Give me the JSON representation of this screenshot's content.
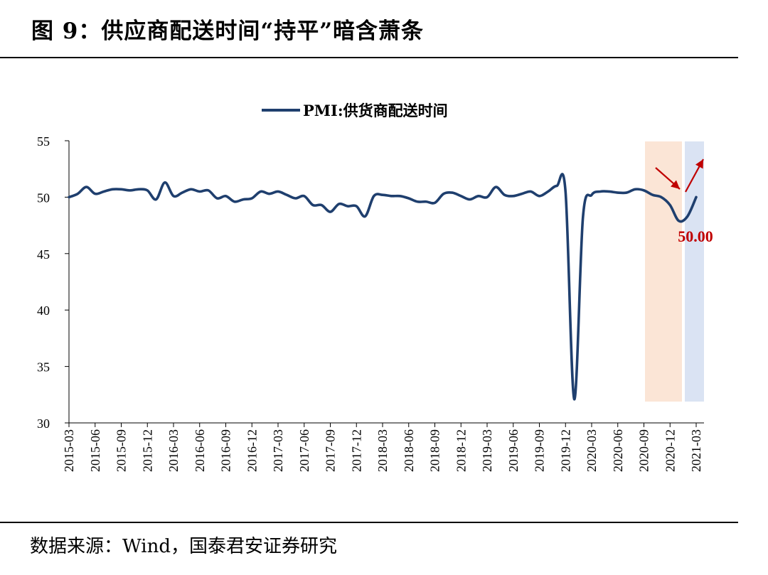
{
  "figure": {
    "title": "图 9：供应商配送时间“持平”暗含萧条",
    "source": "数据来源：Wind，国泰君安证券研究"
  },
  "chart_data": {
    "type": "line",
    "title": "",
    "xlabel": "",
    "ylabel": "",
    "ylim": [
      30,
      55
    ],
    "yticks": [
      30,
      35,
      40,
      45,
      50,
      55
    ],
    "legend_position": "top-center",
    "grid": false,
    "xtick_labels": [
      "2015-03",
      "2015-06",
      "2015-09",
      "2015-12",
      "2016-03",
      "2016-06",
      "2016-09",
      "2016-12",
      "2017-03",
      "2017-06",
      "2017-09",
      "2017-12",
      "2018-03",
      "2018-06",
      "2018-09",
      "2018-12",
      "2019-03",
      "2019-06",
      "2019-09",
      "2019-12",
      "2020-03",
      "2020-06",
      "2020-09",
      "2020-12",
      "2021-03"
    ],
    "x": [
      "2015-03",
      "2015-04",
      "2015-05",
      "2015-06",
      "2015-07",
      "2015-08",
      "2015-09",
      "2015-10",
      "2015-11",
      "2015-12",
      "2016-01",
      "2016-02",
      "2016-03",
      "2016-04",
      "2016-05",
      "2016-06",
      "2016-07",
      "2016-08",
      "2016-09",
      "2016-10",
      "2016-11",
      "2016-12",
      "2017-01",
      "2017-02",
      "2017-03",
      "2017-04",
      "2017-05",
      "2017-06",
      "2017-07",
      "2017-08",
      "2017-09",
      "2017-10",
      "2017-11",
      "2017-12",
      "2018-01",
      "2018-02",
      "2018-03",
      "2018-04",
      "2018-05",
      "2018-06",
      "2018-07",
      "2018-08",
      "2018-09",
      "2018-10",
      "2018-11",
      "2018-12",
      "2019-01",
      "2019-02",
      "2019-03",
      "2019-04",
      "2019-05",
      "2019-06",
      "2019-07",
      "2019-08",
      "2019-09",
      "2019-10",
      "2019-11",
      "2019-12",
      "2020-01",
      "2020-02",
      "2020-03",
      "2020-04",
      "2020-05",
      "2020-06",
      "2020-07",
      "2020-08",
      "2020-09",
      "2020-10",
      "2020-11",
      "2020-12",
      "2021-01",
      "2021-02",
      "2021-03"
    ],
    "series": [
      {
        "name": "PMI:供货商配送时间",
        "color": "#1f3f6e",
        "values": [
          50.0,
          50.3,
          50.9,
          50.3,
          50.5,
          50.7,
          50.7,
          50.6,
          50.7,
          50.6,
          49.8,
          51.3,
          50.1,
          50.4,
          50.7,
          50.5,
          50.6,
          49.9,
          50.1,
          49.6,
          49.8,
          49.9,
          50.5,
          50.3,
          50.5,
          50.2,
          49.9,
          50.1,
          49.3,
          49.3,
          48.7,
          49.4,
          49.2,
          49.2,
          48.3,
          50.1,
          50.2,
          50.1,
          50.1,
          49.9,
          49.6,
          49.6,
          49.5,
          50.3,
          50.4,
          50.1,
          49.8,
          50.1,
          50.0,
          50.9,
          50.2,
          50.1,
          50.3,
          50.5,
          50.1,
          50.5,
          51.0,
          50.5,
          32.1,
          48.2,
          50.2,
          50.5,
          50.5,
          50.4,
          50.4,
          50.7,
          50.6,
          50.2,
          50.0,
          49.3,
          47.9,
          48.3,
          50.0
        ]
      }
    ],
    "shaded_regions": [
      {
        "start": "2020-09",
        "end": "2021-01",
        "color": "#fbe5d6"
      },
      {
        "start": "2021-01",
        "end": "2021-03",
        "color": "#dae3f3"
      }
    ],
    "annotations": [
      {
        "text": "50.00",
        "x": "2021-03",
        "y": 50.0,
        "color": "#c00000"
      }
    ],
    "arrow_color": "#c00000"
  }
}
